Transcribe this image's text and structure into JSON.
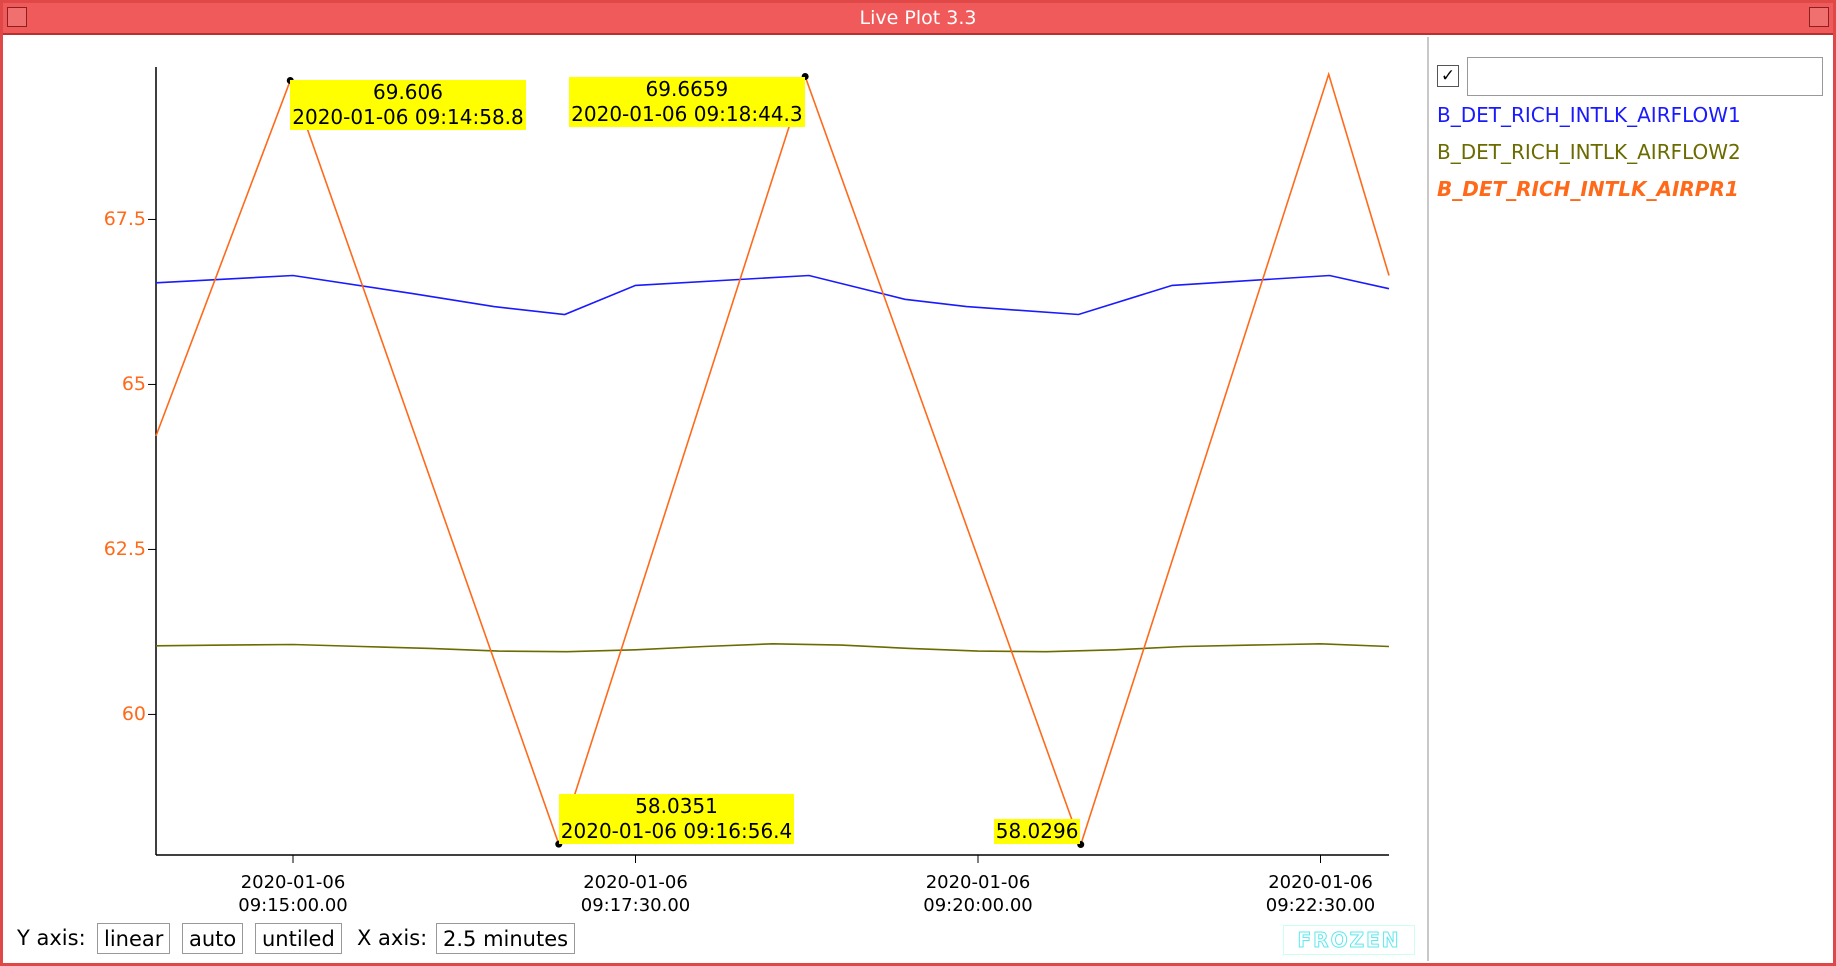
{
  "window": {
    "title": "Live Plot 3.3"
  },
  "chart_data": {
    "type": "line",
    "xlim": [
      "2020-01-06 09:14:00",
      "2020-01-06 09:23:00"
    ],
    "xticks": [
      "2020-01-06 09:15:00.00",
      "2020-01-06 09:17:30.00",
      "2020-01-06 09:20:00.00",
      "2020-01-06 09:22:30.00"
    ],
    "ylim": [
      57.87,
      69.81
    ],
    "yticks": [
      60,
      62.5,
      65,
      67.5
    ],
    "ytick_color": "#ff6a1a",
    "series": [
      {
        "name": "B_DET_RICH_INTLK_AIRFLOW1",
        "color": "#1a1aff",
        "x": [
          "2020-01-06 09:14:00",
          "2020-01-06 09:15:00",
          "2020-01-06 09:15:52",
          "2020-01-06 09:16:28",
          "2020-01-06 09:16:59",
          "2020-01-06 09:17:30",
          "2020-01-06 09:18:46",
          "2020-01-06 09:19:28",
          "2020-01-06 09:19:55",
          "2020-01-06 09:20:44",
          "2020-01-06 09:21:25",
          "2020-01-06 09:22:34",
          "2020-01-06 09:23:00"
        ],
        "values": [
          66.54,
          66.65,
          66.38,
          66.18,
          66.06,
          66.5,
          66.65,
          66.29,
          66.18,
          66.06,
          66.5,
          66.65,
          66.45
        ]
      },
      {
        "name": "B_DET_RICH_INTLK_AIRFLOW2",
        "color": "#6b6b00",
        "x": [
          "2020-01-06 09:14:00",
          "2020-01-06 09:14:30",
          "2020-01-06 09:15:00",
          "2020-01-06 09:15:30",
          "2020-01-06 09:16:00",
          "2020-01-06 09:16:30",
          "2020-01-06 09:17:00",
          "2020-01-06 09:17:30",
          "2020-01-06 09:18:00",
          "2020-01-06 09:18:30",
          "2020-01-06 09:19:00",
          "2020-01-06 09:19:30",
          "2020-01-06 09:20:00",
          "2020-01-06 09:20:30",
          "2020-01-06 09:21:00",
          "2020-01-06 09:21:30",
          "2020-01-06 09:22:00",
          "2020-01-06 09:22:30",
          "2020-01-06 09:23:00"
        ],
        "values": [
          61.04,
          61.05,
          61.06,
          61.03,
          61.0,
          60.96,
          60.95,
          60.98,
          61.03,
          61.07,
          61.05,
          61.0,
          60.96,
          60.95,
          60.98,
          61.03,
          61.05,
          61.07,
          61.03
        ]
      },
      {
        "name": "B_DET_RICH_INTLK_AIRPR1",
        "color": "#ff6a1a",
        "selected": true,
        "x": [
          "2020-01-06 09:14:00",
          "2020-01-06 09:14:58.8",
          "2020-01-06 09:16:56.4",
          "2020-01-06 09:18:44.3",
          "2020-01-06 09:20:45",
          "2020-01-06 09:22:33.6",
          "2020-01-06 09:23:00"
        ],
        "values": [
          64.22,
          69.606,
          58.0351,
          69.6659,
          58.0296,
          69.7,
          66.65
        ]
      }
    ],
    "annotations": [
      {
        "x": "2020-01-06 09:14:58.8",
        "y": 69.606,
        "show_x": true
      },
      {
        "x": "2020-01-06 09:18:44.3",
        "y": 69.6659,
        "show_x": true
      },
      {
        "x": "2020-01-06 09:16:56.4",
        "y": 58.0351,
        "show_x": true
      },
      {
        "x": "2020-01-06 09:20:45",
        "y": 58.0296,
        "show_x": false
      }
    ]
  },
  "controls": {
    "y_axis_label": "Y axis:",
    "y_scale": "linear",
    "y_range": "auto",
    "tiling": "untiled",
    "x_axis_label": "X axis:",
    "x_span": "2.5 minutes",
    "status": "FROZEN"
  }
}
